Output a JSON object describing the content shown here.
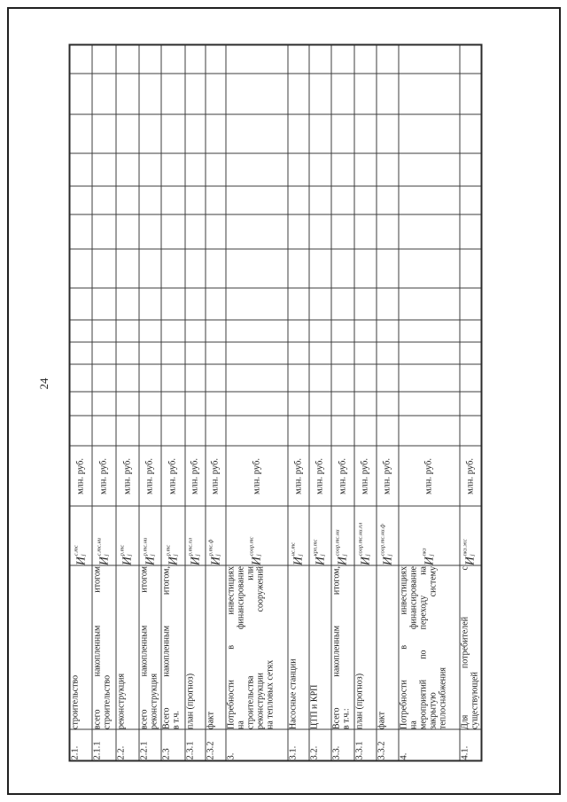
{
  "page_number": "24",
  "table": {
    "unit_repeated": "млн. руб.",
    "empty_year_columns": 13,
    "rows": [
      {
        "num": "2.1.",
        "name_lines": [
          "строительство"
        ],
        "formula": {
          "base": "И",
          "sup": "с.тс",
          "sub": "j"
        },
        "unit": "млн. руб."
      },
      {
        "num": "2.1.1",
        "name_lines": [
          "всего накопленным итогом",
          "строительство"
        ],
        "formula": {
          "base": "И",
          "sup": "с.тс.ни",
          "sub": "j"
        },
        "unit": "млн. руб."
      },
      {
        "num": "2.2.",
        "name_lines": [
          "реконструкция"
        ],
        "formula": {
          "base": "И",
          "sup": "р.тс",
          "sub": "j"
        },
        "unit": "млн. руб."
      },
      {
        "num": "2.2.1",
        "name_lines": [
          "всего накопленным итогом",
          "реконструкция"
        ],
        "formula": {
          "base": "И",
          "sup": "р.тс.ни",
          "sub": "j"
        },
        "unit": "млн. руб."
      },
      {
        "num": "2.3",
        "name_lines": [
          "Всего накопленным итогом,",
          "в т.ч."
        ],
        "formula": {
          "base": "И",
          "sup": "р.тс",
          "sub": "j"
        },
        "unit": "млн. руб."
      },
      {
        "num": "2.3.1",
        "name_lines": [
          "план (прогноз)"
        ],
        "formula": {
          "base": "И",
          "sup": "р.тс.пл",
          "sub": "j"
        },
        "unit": "млн. руб."
      },
      {
        "num": "2.3.2",
        "name_lines": [
          "факт"
        ],
        "formula": {
          "base": "И",
          "sup": "р.тс.ф",
          "sub": "j"
        },
        "unit": "млн. руб."
      },
      {
        "num": "3.",
        "name_lines": [
          "Потребности в инвестициях",
          "на финансирование",
          "строительства или",
          "реконструкции сооружений",
          "на тепловых сетях"
        ],
        "formula": {
          "base": "И",
          "sup": "соор.тс",
          "sub": "j"
        },
        "unit": "млн. руб."
      },
      {
        "num": "3.1.",
        "name_lines": [
          "Насосные станции"
        ],
        "formula": {
          "base": "И",
          "sup": "нс.тс",
          "sub": "j"
        },
        "unit": "млн. руб."
      },
      {
        "num": "3.2.",
        "name_lines": [
          "ЦТП и КРП"
        ],
        "formula": {
          "base": "И",
          "sup": "крп.тс",
          "sub": "j"
        },
        "unit": "млн. руб."
      },
      {
        "num": "3.3.",
        "name_lines": [
          "Всего накопленным итогом,",
          "в т.ч.:"
        ],
        "formula": {
          "base": "И",
          "sup": "соор.тс.ни",
          "sub": "j"
        },
        "unit": "млн. руб."
      },
      {
        "num": "3.3.1",
        "name_lines": [
          "план (прогноз)"
        ],
        "formula": {
          "base": "И",
          "sup": "соор.тс.ни.пл",
          "sub": "j"
        },
        "unit": "млн. руб."
      },
      {
        "num": "3.3.2",
        "name_lines": [
          "факт"
        ],
        "formula": {
          "base": "И",
          "sup": "соор.тс.ни.ф",
          "sub": "j"
        },
        "unit": "млн. руб."
      },
      {
        "num": "4.",
        "name_lines": [
          "Потребности в инвестициях",
          "на финансирование",
          "мероприятий по переходу на",
          "закрытую систему",
          "теплоснабжения"
        ],
        "formula": {
          "base": "И",
          "sup": "пкз",
          "sub": "j"
        },
        "unit": "млн. руб."
      },
      {
        "num": "4.1.",
        "name_lines": [
          "Для потребителей с",
          "существующей"
        ],
        "formula": {
          "base": "И",
          "sup": "пкз.жс",
          "sub": "j"
        },
        "unit": "млн. руб."
      }
    ]
  }
}
